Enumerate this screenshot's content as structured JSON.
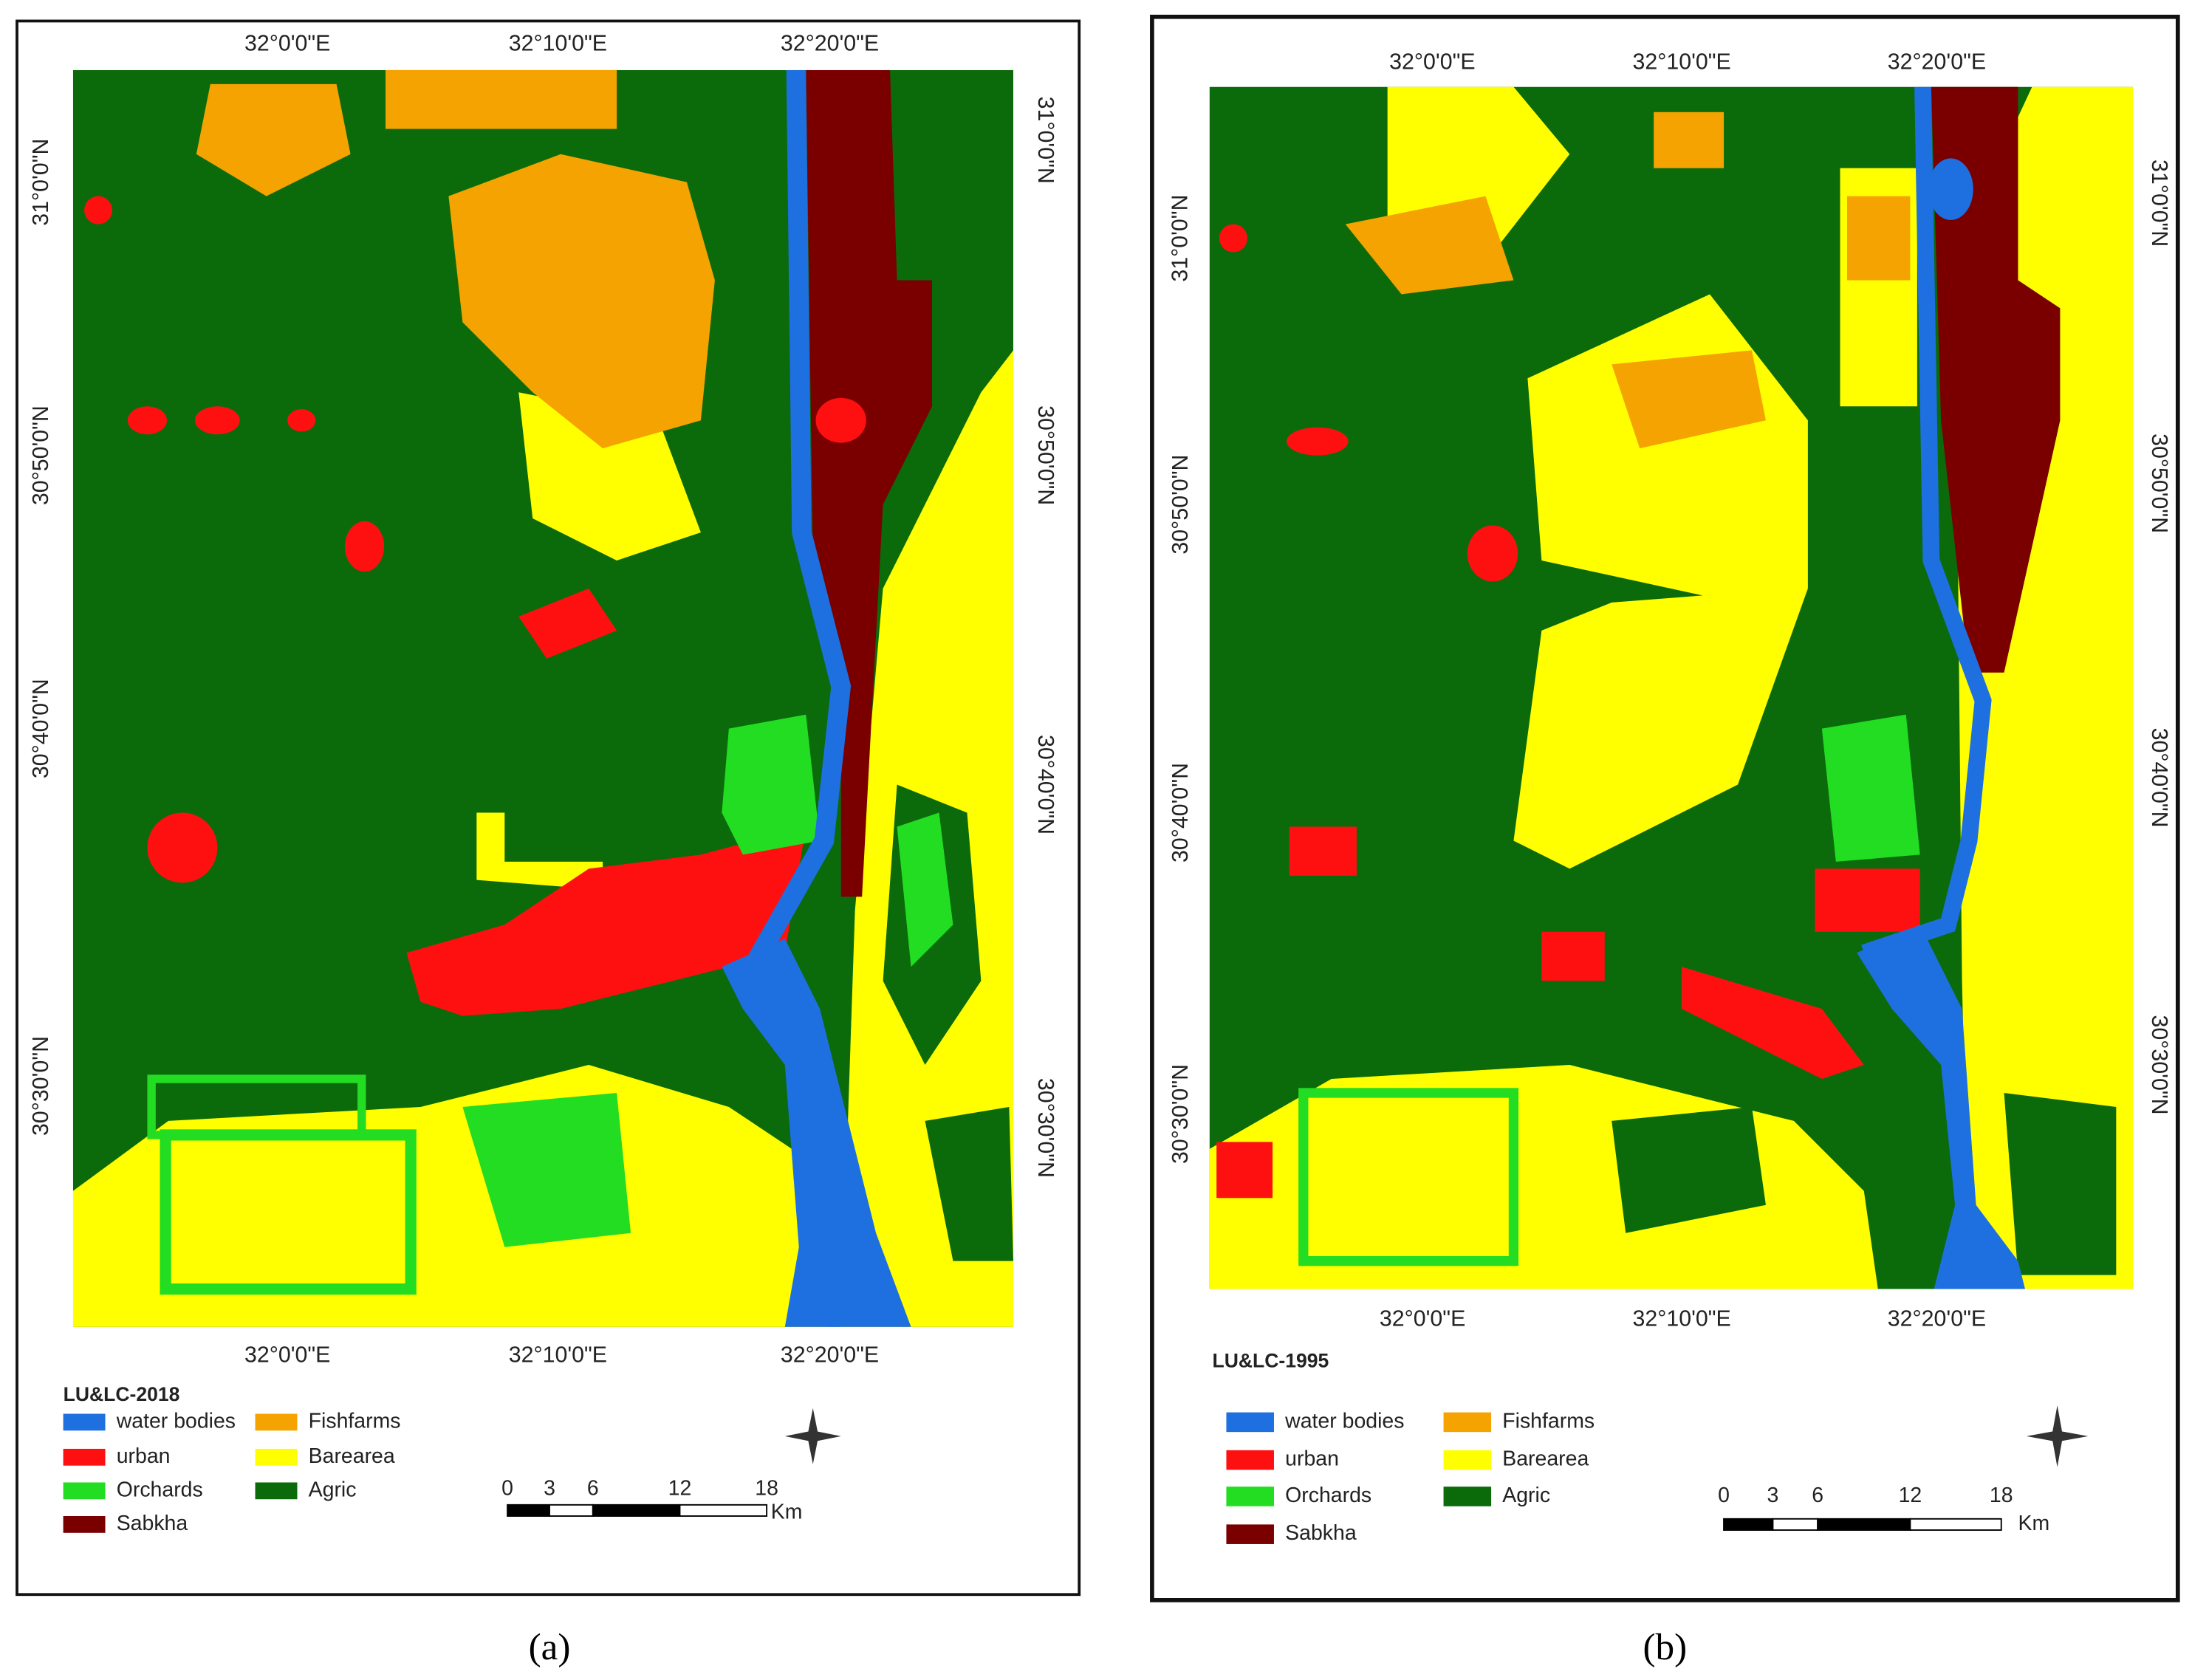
{
  "panels": [
    {
      "caption": "(a)",
      "map_title": "LU&LC-2018",
      "top_labels": [
        "32°0'0\"E",
        "32°10'0\"E",
        "32°20'0\"E"
      ],
      "bottom_labels": [
        "32°0'0\"E",
        "32°10'0\"E",
        "32°20'0\"E"
      ],
      "left_labels": [
        "31°0'0\"N",
        "30°50'0\"N",
        "30°40'0\"N",
        "30°30'0\"N"
      ],
      "right_labels": [
        "31°0'0\"N",
        "30°50'0\"N",
        "30°40'0\"N",
        "30°30'0\"N"
      ],
      "legend": [
        {
          "name": "water bodies",
          "color": "#1e6fe0"
        },
        {
          "name": "urban",
          "color": "#ff1010"
        },
        {
          "name": "Orchards",
          "color": "#22dd22"
        },
        {
          "name": "Sabkha",
          "color": "#7a0000"
        },
        {
          "name": "Fishfarms",
          "color": "#f5a300"
        },
        {
          "name": "Barearea",
          "color": "#ffff00"
        },
        {
          "name": "Agric",
          "color": "#0b6b0b"
        }
      ],
      "scale_labels": [
        0,
        3,
        6,
        12,
        18
      ],
      "scale_unit": "Km"
    },
    {
      "caption": "(b)",
      "map_title": "LU&LC-1995",
      "top_labels": [
        "32°0'0\"E",
        "32°10'0\"E",
        "32°20'0\"E"
      ],
      "bottom_labels": [
        "32°0'0\"E",
        "32°10'0\"E",
        "32°20'0\"E"
      ],
      "left_labels": [
        "31°0'0\"N",
        "30°50'0\"N",
        "30°40'0\"N",
        "30°30'0\"N"
      ],
      "right_labels": [
        "31°0'0\"N",
        "30°50'0\"N",
        "30°40'0\"N",
        "30°30'0\"N"
      ],
      "legend": [
        {
          "name": "water bodies",
          "color": "#1e6fe0"
        },
        {
          "name": "urban",
          "color": "#ff1010"
        },
        {
          "name": "Orchards",
          "color": "#22dd22"
        },
        {
          "name": "Sabkha",
          "color": "#7a0000"
        },
        {
          "name": "Fishfarms",
          "color": "#f5a300"
        },
        {
          "name": "Barearea",
          "color": "#ffff00"
        },
        {
          "name": "Agric",
          "color": "#0b6b0b"
        }
      ],
      "scale_labels": [
        0,
        3,
        6,
        12,
        18
      ],
      "scale_unit": "Km"
    }
  ]
}
